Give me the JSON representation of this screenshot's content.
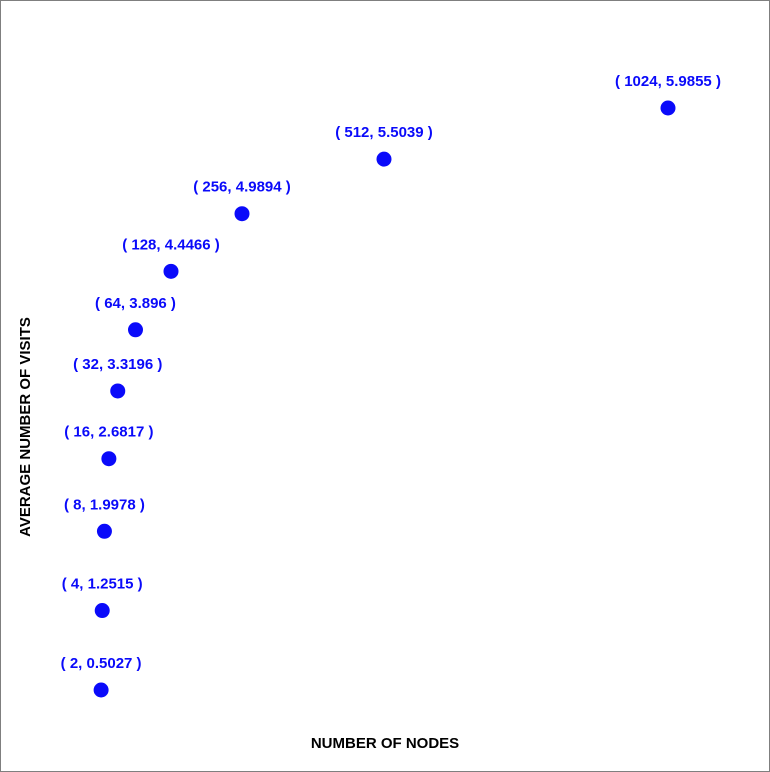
{
  "colors": {
    "point": "#0a0afa",
    "label": "#0a0afa",
    "axis_title": "#000000",
    "border": "#7f7f7f"
  },
  "chart_data": {
    "type": "scatter",
    "title": "",
    "xlabel": "NUMBER OF NODES",
    "ylabel": "AVERAGE NUMBER OF VISITS",
    "grid": false,
    "xlim": [
      0,
      1200
    ],
    "ylim": [
      0,
      6.5
    ],
    "points": [
      {
        "x": 2,
        "y": 0.5027,
        "label": "( 2, 0.5027 )"
      },
      {
        "x": 4,
        "y": 1.2515,
        "label": "( 4, 1.2515 )"
      },
      {
        "x": 8,
        "y": 1.9978,
        "label": "( 8, 1.9978 )"
      },
      {
        "x": 16,
        "y": 2.6817,
        "label": "( 16, 2.6817 )"
      },
      {
        "x": 32,
        "y": 3.3196,
        "label": "( 32, 3.3196 )"
      },
      {
        "x": 64,
        "y": 3.896,
        "label": "( 64, 3.896 )"
      },
      {
        "x": 128,
        "y": 4.4466,
        "label": "( 128, 4.4466 )"
      },
      {
        "x": 256,
        "y": 4.9894,
        "label": "( 256, 4.9894 )"
      },
      {
        "x": 512,
        "y": 5.5039,
        "label": "( 512, 5.5039 )"
      },
      {
        "x": 1024,
        "y": 5.9855,
        "label": "( 1024, 5.9855 )"
      }
    ]
  }
}
